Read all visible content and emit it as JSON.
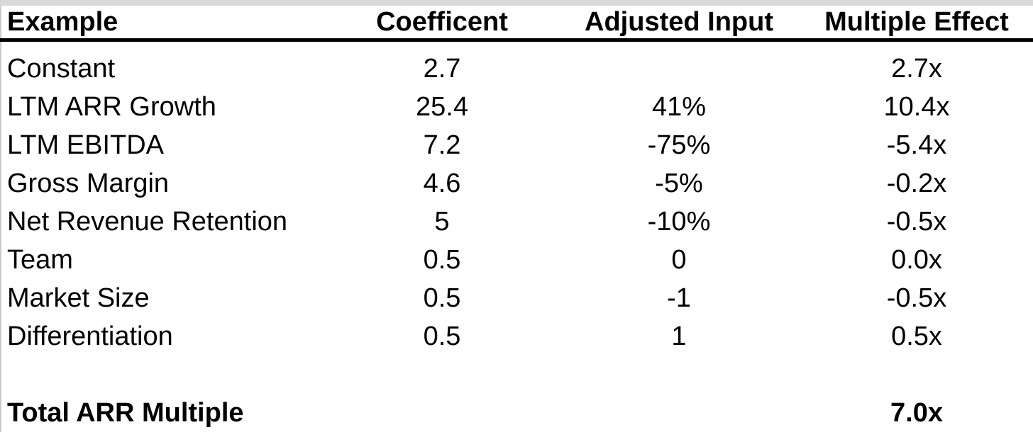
{
  "table": {
    "columns": [
      {
        "label": "Example"
      },
      {
        "label": "Coefficent"
      },
      {
        "label": "Adjusted Input"
      },
      {
        "label": "Multiple Effect"
      }
    ],
    "rows": [
      [
        "Constant",
        "2.7",
        "",
        "2.7x"
      ],
      [
        "LTM ARR Growth",
        "25.4",
        "41%",
        "10.4x"
      ],
      [
        "LTM EBITDA",
        "7.2",
        "-75%",
        "-5.4x"
      ],
      [
        "Gross Margin",
        "4.6",
        "-5%",
        "-0.2x"
      ],
      [
        "Net Revenue Retention",
        "5",
        "-10%",
        "-0.5x"
      ],
      [
        "Team",
        "0.5",
        "0",
        "0.0x"
      ],
      [
        "Market Size",
        "0.5",
        "-1",
        "-0.5x"
      ],
      [
        "Differentiation",
        "0.5",
        "1",
        "0.5x"
      ]
    ],
    "total_row": {
      "label": "Total ARR Multiple",
      "value": "7.0x"
    }
  },
  "chart_data": {
    "type": "table",
    "title": "",
    "columns": [
      "Example",
      "Coefficent",
      "Adjusted Input",
      "Multiple Effect"
    ],
    "rows": [
      [
        "Constant",
        2.7,
        null,
        "2.7x"
      ],
      [
        "LTM ARR Growth",
        25.4,
        "41%",
        "10.4x"
      ],
      [
        "LTM EBITDA",
        7.2,
        "-75%",
        "-5.4x"
      ],
      [
        "Gross Margin",
        4.6,
        "-5%",
        "-0.2x"
      ],
      [
        "Net Revenue Retention",
        5,
        "-10%",
        "-0.5x"
      ],
      [
        "Team",
        0.5,
        0,
        "0.0x"
      ],
      [
        "Market Size",
        0.5,
        -1,
        "-0.5x"
      ],
      [
        "Differentiation",
        0.5,
        1,
        "0.5x"
      ],
      [
        "Total ARR Multiple",
        null,
        null,
        "7.0x"
      ]
    ]
  },
  "colors": {
    "background": "#ffffff",
    "text": "#000000",
    "header_rule": "#000000",
    "top_strip": "#d9d9d9",
    "left_edge": "#c9c9c9"
  }
}
